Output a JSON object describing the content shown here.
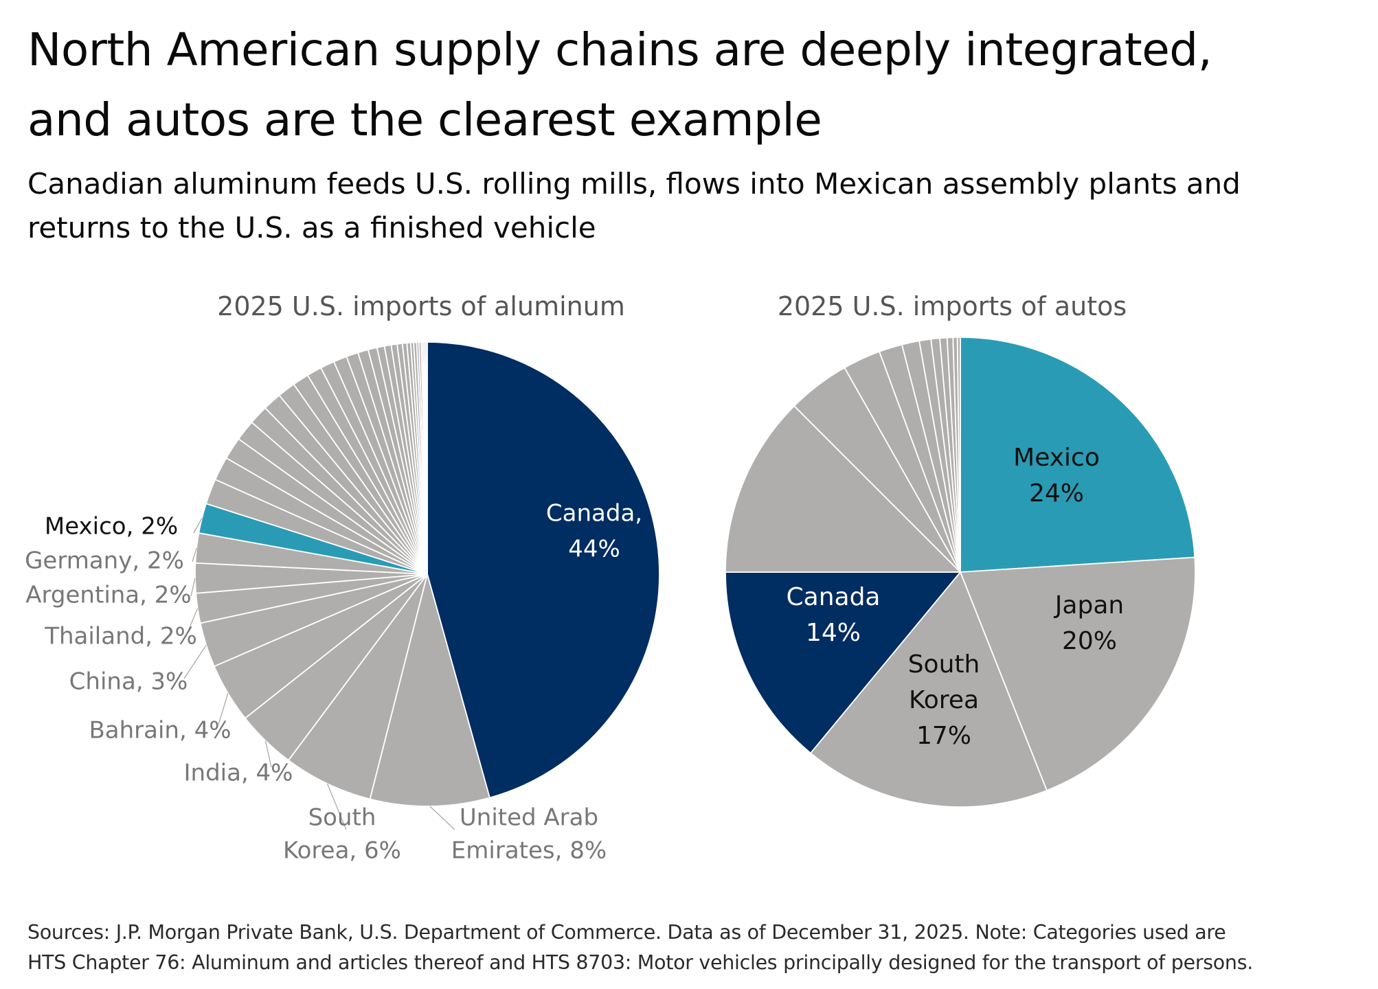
{
  "header": {
    "title_line1": "North American supply chains are deeply integrated,",
    "title_line2": "and autos are the clearest example",
    "subtitle_line1": "Canadian aluminum feeds U.S. rolling mills, flows into Mexican assembly plants and",
    "subtitle_line2": "returns to the U.S. as a finished vehicle"
  },
  "colors": {
    "canada": "#002d62",
    "mexico": "#2a9bb4",
    "other": "#b0aeac",
    "outline": "#ffffff",
    "label_gray": "#777777",
    "leader_gray": "#aaaaaa"
  },
  "chart_data": [
    {
      "type": "pie",
      "title": "2025 U.S. imports of aluminum",
      "slices": [
        {
          "name": "Canada",
          "value": 44,
          "label": [
            "Canada,",
            "44%"
          ],
          "color": "#002d62"
        },
        {
          "name": "United Arab Emirates",
          "value": 8,
          "label": [
            "United Arab",
            "Emirates, 8%"
          ],
          "color": "#b0aeac"
        },
        {
          "name": "South Korea",
          "value": 6,
          "label": [
            "South",
            "Korea, 6%"
          ],
          "color": "#b0aeac"
        },
        {
          "name": "India",
          "value": 4,
          "label": [
            "India, 4%"
          ],
          "color": "#b0aeac"
        },
        {
          "name": "Bahrain",
          "value": 4,
          "label": [
            "Bahrain, 4%"
          ],
          "color": "#b0aeac"
        },
        {
          "name": "China",
          "value": 3,
          "label": [
            "China, 3%"
          ],
          "color": "#b0aeac"
        },
        {
          "name": "Thailand",
          "value": 2,
          "label": [
            "Thailand, 2%"
          ],
          "color": "#b0aeac"
        },
        {
          "name": "Argentina",
          "value": 2,
          "label": [
            "Argentina, 2%"
          ],
          "color": "#b0aeac"
        },
        {
          "name": "Germany",
          "value": 2,
          "label": [
            "Germany, 2%"
          ],
          "color": "#b0aeac"
        },
        {
          "name": "Mexico",
          "value": 2,
          "label": [
            "Mexico, 2%"
          ],
          "color": "#2a9bb4"
        }
      ],
      "other_slices": [
        1.7,
        1.6,
        1.5,
        1.4,
        1.3,
        1.25,
        1.2,
        1.1,
        1.0,
        0.95,
        0.9,
        0.8,
        0.7,
        0.6,
        0.5,
        0.45,
        0.4,
        0.35,
        0.3,
        0.25,
        0.2,
        0.2,
        0.15,
        0.15,
        0.1,
        0.1,
        0.1,
        0.1
      ]
    },
    {
      "type": "pie",
      "title": "2025 U.S. imports of autos",
      "slices": [
        {
          "name": "Mexico",
          "value": 24,
          "label": [
            "Mexico",
            "24%"
          ],
          "color": "#2a9bb4"
        },
        {
          "name": "Japan",
          "value": 20,
          "label": [
            "Japan",
            "20%"
          ],
          "color": "#b0aeac"
        },
        {
          "name": "South Korea",
          "value": 17,
          "label": [
            "South",
            "Korea",
            "17%"
          ],
          "color": "#b0aeac"
        },
        {
          "name": "Canada",
          "value": 14,
          "label": [
            "Canada",
            "14%"
          ],
          "color": "#002d62"
        }
      ],
      "other_slices": [
        12.5,
        4.3,
        2.6,
        1.6,
        1.2,
        0.8,
        0.6,
        0.5,
        0.4,
        0.3,
        0.2
      ]
    }
  ],
  "footer": {
    "line1": "Sources: J.P. Morgan Private Bank, U.S. Department of Commerce. Data as of December 31, 2025. Note: Categories used are",
    "line2": "HTS Chapter 76: Aluminum and articles thereof and HTS 8703: Motor vehicles principally designed for the transport of persons."
  }
}
